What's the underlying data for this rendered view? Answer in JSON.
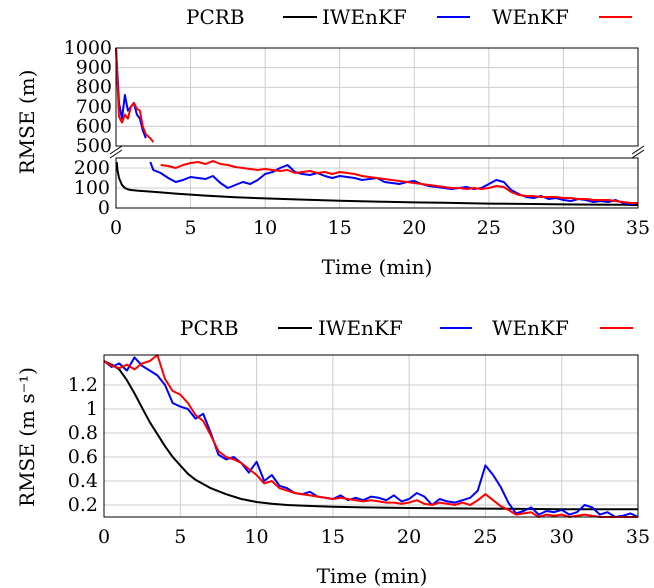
{
  "chart_data": [
    {
      "type": "line",
      "xlabel": "Time (min)",
      "ylabel": "RMSE (m)",
      "xlim": [
        0,
        35
      ],
      "xticks": [
        0,
        5,
        10,
        15,
        20,
        25,
        30,
        35
      ],
      "broken_y_axis": true,
      "upper_ylim": [
        500,
        1000
      ],
      "upper_yticks": [
        500,
        600,
        700,
        800,
        900,
        1000
      ],
      "lower_ylim": [
        0,
        250
      ],
      "lower_yticks": [
        0,
        100,
        200
      ],
      "grid": true,
      "legend_position": "top",
      "series": [
        {
          "name": "PCRB",
          "color": "#000000",
          "x": [
            0.05,
            0.1,
            0.2,
            0.4,
            0.6,
            0.8,
            1,
            1.5,
            2,
            3,
            4,
            5,
            6,
            8,
            10,
            12,
            15,
            18,
            20,
            22,
            25,
            28,
            30,
            32,
            34,
            35
          ],
          "y": [
            230,
            190,
            150,
            115,
            100,
            93,
            90,
            86,
            84,
            78,
            72,
            67,
            62,
            54,
            48,
            43,
            36,
            31,
            28,
            26,
            22,
            20,
            18,
            17,
            16,
            15
          ]
        },
        {
          "name": "IWEnKF",
          "color": "#0000ff",
          "x": [
            0,
            0.2,
            0.4,
            0.6,
            0.8,
            1,
            1.2,
            1.4,
            1.6,
            1.8,
            2,
            2.3,
            2.5,
            3,
            3.5,
            4,
            4.5,
            5,
            5.5,
            6,
            6.5,
            7,
            7.5,
            8,
            8.5,
            9,
            9.5,
            10,
            10.5,
            11,
            11.5,
            12,
            12.5,
            13,
            13.5,
            14,
            14.5,
            15,
            15.5,
            16,
            16.5,
            17,
            17.5,
            18,
            18.5,
            19,
            19.5,
            20,
            20.5,
            21,
            21.5,
            22,
            22.5,
            23,
            23.5,
            24,
            24.5,
            25,
            25.5,
            26,
            26.5,
            27,
            27.5,
            28,
            28.5,
            29,
            29.5,
            30,
            30.5,
            31,
            31.5,
            32,
            32.5,
            33,
            33.5,
            34,
            34.5,
            35
          ],
          "y": [
            1000,
            720,
            640,
            760,
            680,
            700,
            720,
            660,
            640,
            580,
            540,
            230,
            190,
            175,
            150,
            130,
            140,
            155,
            150,
            145,
            160,
            125,
            100,
            115,
            130,
            120,
            140,
            170,
            180,
            200,
            215,
            180,
            170,
            165,
            175,
            160,
            150,
            160,
            155,
            150,
            140,
            145,
            150,
            130,
            125,
            120,
            130,
            135,
            120,
            110,
            105,
            100,
            95,
            100,
            105,
            95,
            100,
            120,
            140,
            130,
            90,
            70,
            55,
            50,
            60,
            45,
            50,
            40,
            35,
            45,
            40,
            30,
            35,
            30,
            40,
            25,
            20,
            25
          ]
        },
        {
          "name": "WEnKF",
          "color": "#ff0000",
          "x": [
            0,
            0.2,
            0.4,
            0.6,
            0.8,
            1,
            1.2,
            1.4,
            1.6,
            1.8,
            2,
            2.3,
            2.5,
            3,
            3.5,
            4,
            4.5,
            5,
            5.5,
            6,
            6.5,
            7,
            7.5,
            8,
            8.5,
            9,
            9.5,
            10,
            10.5,
            11,
            11.5,
            12,
            12.5,
            13,
            13.5,
            14,
            14.5,
            15,
            15.5,
            16,
            16.5,
            17,
            17.5,
            18,
            18.5,
            19,
            19.5,
            20,
            20.5,
            21,
            21.5,
            22,
            22.5,
            23,
            23.5,
            24,
            24.5,
            25,
            25.5,
            26,
            26.5,
            27,
            27.5,
            28,
            28.5,
            29,
            29.5,
            30,
            30.5,
            31,
            31.5,
            32,
            32.5,
            33,
            33.5,
            34,
            34.5,
            35
          ],
          "y": [
            1000,
            650,
            620,
            660,
            640,
            700,
            720,
            690,
            680,
            600,
            560,
            540,
            520,
            215,
            210,
            200,
            215,
            225,
            230,
            220,
            235,
            220,
            215,
            205,
            200,
            195,
            190,
            195,
            190,
            185,
            190,
            175,
            180,
            185,
            175,
            180,
            170,
            180,
            175,
            170,
            160,
            155,
            150,
            145,
            140,
            135,
            130,
            125,
            120,
            115,
            110,
            105,
            100,
            100,
            95,
            100,
            95,
            100,
            110,
            105,
            80,
            65,
            60,
            60,
            55,
            55,
            55,
            50,
            50,
            45,
            45,
            40,
            40,
            40,
            35,
            30,
            25,
            25
          ]
        }
      ]
    },
    {
      "type": "line",
      "xlabel": "Time (min)",
      "ylabel": "RMSE (m s⁻¹)",
      "xlim": [
        0,
        35
      ],
      "xticks": [
        0,
        5,
        10,
        15,
        20,
        25,
        30,
        35
      ],
      "ylim": [
        0.1,
        1.45
      ],
      "yticks": [
        0.2,
        0.4,
        0.6,
        0.8,
        1,
        1.2
      ],
      "ytick_labels": [
        "0.2",
        "0.4",
        "0.6",
        "0.8",
        "1",
        "1.2"
      ],
      "grid": true,
      "legend_position": "top",
      "series": [
        {
          "name": "PCRB",
          "color": "#000000",
          "x": [
            0,
            0.5,
            1,
            1.5,
            2,
            2.5,
            3,
            3.5,
            4,
            4.5,
            5,
            5.5,
            6,
            7,
            8,
            9,
            10,
            11,
            12,
            13,
            14,
            15,
            17,
            20,
            25,
            30,
            35
          ],
          "y": [
            1.4,
            1.37,
            1.33,
            1.24,
            1.13,
            1.01,
            0.89,
            0.79,
            0.69,
            0.6,
            0.53,
            0.46,
            0.41,
            0.34,
            0.29,
            0.25,
            0.225,
            0.21,
            0.2,
            0.195,
            0.19,
            0.185,
            0.18,
            0.175,
            0.17,
            0.165,
            0.165
          ]
        },
        {
          "name": "IWEnKF",
          "color": "#0000ff",
          "x": [
            0,
            0.5,
            1,
            1.5,
            2,
            2.5,
            3,
            3.5,
            4,
            4.5,
            5,
            5.5,
            6,
            6.5,
            7,
            7.5,
            8,
            8.5,
            9,
            9.5,
            10,
            10.5,
            11,
            11.5,
            12,
            12.5,
            13,
            13.5,
            14,
            14.5,
            15,
            15.5,
            16,
            16.5,
            17,
            17.5,
            18,
            18.5,
            19,
            19.5,
            20,
            20.5,
            21,
            21.5,
            22,
            22.5,
            23,
            23.5,
            24,
            24.5,
            25,
            25.5,
            26,
            26.5,
            27,
            27.5,
            28,
            28.5,
            29,
            29.5,
            30,
            30.5,
            31,
            31.5,
            32,
            32.5,
            33,
            33.5,
            34,
            34.5,
            35
          ],
          "y": [
            1.4,
            1.35,
            1.38,
            1.32,
            1.43,
            1.36,
            1.32,
            1.28,
            1.2,
            1.05,
            1.02,
            1.0,
            0.92,
            0.96,
            0.8,
            0.62,
            0.58,
            0.6,
            0.55,
            0.47,
            0.56,
            0.4,
            0.45,
            0.36,
            0.34,
            0.3,
            0.29,
            0.31,
            0.27,
            0.26,
            0.25,
            0.28,
            0.24,
            0.26,
            0.24,
            0.27,
            0.26,
            0.24,
            0.28,
            0.23,
            0.25,
            0.3,
            0.27,
            0.2,
            0.25,
            0.23,
            0.22,
            0.24,
            0.26,
            0.32,
            0.53,
            0.45,
            0.35,
            0.22,
            0.13,
            0.15,
            0.18,
            0.12,
            0.15,
            0.14,
            0.16,
            0.12,
            0.14,
            0.2,
            0.18,
            0.12,
            0.14,
            0.1,
            0.11,
            0.13,
            0.1
          ]
        },
        {
          "name": "WEnKF",
          "color": "#ff0000",
          "x": [
            0,
            0.5,
            1,
            1.5,
            2,
            2.5,
            3,
            3.5,
            4,
            4.5,
            5,
            5.5,
            6,
            6.5,
            7,
            7.5,
            8,
            8.5,
            9,
            9.5,
            10,
            10.5,
            11,
            11.5,
            12,
            12.5,
            13,
            13.5,
            14,
            14.5,
            15,
            15.5,
            16,
            16.5,
            17,
            17.5,
            18,
            18.5,
            19,
            19.5,
            20,
            20.5,
            21,
            21.5,
            22,
            22.5,
            23,
            23.5,
            24,
            24.5,
            25,
            25.5,
            26,
            26.5,
            27,
            27.5,
            28,
            28.5,
            29,
            29.5,
            30,
            30.5,
            31,
            31.5,
            32,
            32.5,
            33,
            33.5,
            34,
            34.5,
            35
          ],
          "y": [
            1.4,
            1.36,
            1.34,
            1.37,
            1.33,
            1.38,
            1.4,
            1.45,
            1.25,
            1.15,
            1.12,
            1.05,
            0.95,
            0.9,
            0.78,
            0.65,
            0.6,
            0.58,
            0.55,
            0.5,
            0.45,
            0.38,
            0.4,
            0.34,
            0.32,
            0.3,
            0.29,
            0.28,
            0.27,
            0.26,
            0.25,
            0.26,
            0.25,
            0.24,
            0.23,
            0.24,
            0.23,
            0.22,
            0.22,
            0.21,
            0.22,
            0.24,
            0.21,
            0.2,
            0.22,
            0.21,
            0.2,
            0.22,
            0.2,
            0.24,
            0.29,
            0.24,
            0.19,
            0.16,
            0.12,
            0.13,
            0.14,
            0.1,
            0.12,
            0.11,
            0.12,
            0.1,
            0.11,
            0.12,
            0.11,
            0.1,
            0.1,
            0.09,
            0.1,
            0.09,
            0.09
          ]
        }
      ]
    }
  ]
}
